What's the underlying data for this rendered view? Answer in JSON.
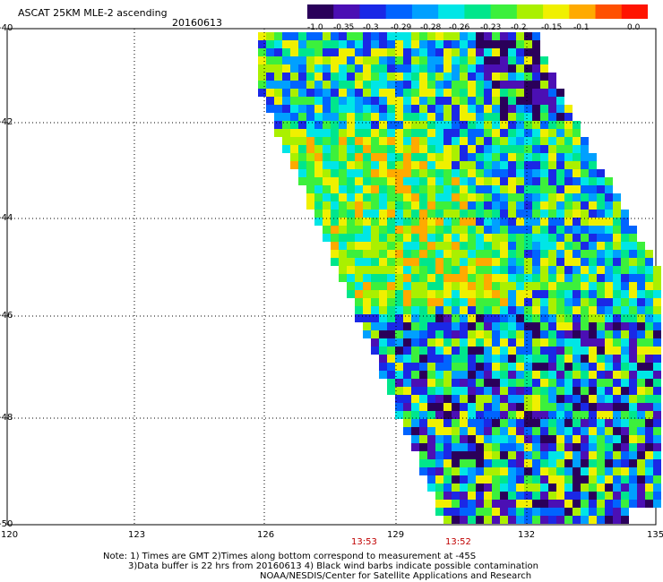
{
  "header": {
    "title": "ASCAT 25KM MLE-2 ascending",
    "date": "20160613"
  },
  "colorbar": {
    "labels": [
      "-1.0",
      "-0.35",
      "-0.3",
      "-0.29",
      "-0.28",
      "-0.26",
      "-0.23",
      "-0.2",
      "-0.15",
      "-0.1",
      "0.0"
    ],
    "colors": [
      "#2a005a",
      "#4b0fb4",
      "#1a28e6",
      "#0064ff",
      "#00a0ff",
      "#00e6e6",
      "#00e68c",
      "#3cf03c",
      "#aaf000",
      "#f0f000",
      "#ffaa00",
      "#ff5000",
      "#ff1400"
    ]
  },
  "axes": {
    "lat_labels": [
      "-40",
      "-42",
      "-44",
      "-46",
      "-48",
      "-50"
    ],
    "lon_labels": [
      "120",
      "123",
      "126",
      "129",
      "132",
      "135"
    ]
  },
  "pass_times": [
    "13:53",
    "13:52"
  ],
  "notes": {
    "line1": "Note: 1) Times are GMT 2)Times along bottom correspond to measurement at -45S",
    "line2": "3)Data buffer is 22 hrs from 20160613 4) Black wind barbs indicate possible contamination",
    "line3": "NOAA/NESDIS/Center for Satellite Applications and Research"
  }
}
